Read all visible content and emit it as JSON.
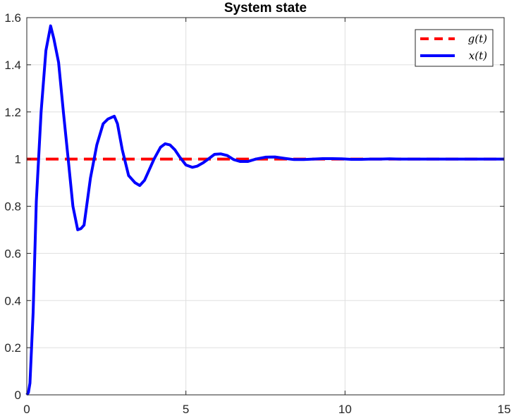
{
  "chart_data": {
    "type": "line",
    "title": "System state",
    "xlabel": "",
    "ylabel": "",
    "xlim": [
      0,
      15
    ],
    "ylim": [
      0,
      1.6
    ],
    "x_ticks": [
      "0",
      "5",
      "10",
      "15"
    ],
    "y_ticks": [
      "0",
      "0.2",
      "0.4",
      "0.6",
      "0.8",
      "1",
      "1.2",
      "1.4",
      "1.6"
    ],
    "grid": true,
    "legend_position": "top-right",
    "series": [
      {
        "name": "g(t)",
        "color": "#ff0000",
        "style": "dashed",
        "x": [
          0,
          15
        ],
        "y": [
          1,
          1
        ]
      },
      {
        "name": "x(t)",
        "color": "#0000ff",
        "style": "solid",
        "x": [
          0,
          0.05,
          0.1,
          0.2,
          0.3,
          0.45,
          0.6,
          0.75,
          0.85,
          1.0,
          1.15,
          1.3,
          1.45,
          1.6,
          1.7,
          1.8,
          2.0,
          2.2,
          2.4,
          2.55,
          2.75,
          2.85,
          3.0,
          3.2,
          3.4,
          3.55,
          3.7,
          3.8,
          4.0,
          4.2,
          4.35,
          4.5,
          4.65,
          4.8,
          5.0,
          5.2,
          5.35,
          5.55,
          5.7,
          5.9,
          6.1,
          6.3,
          6.5,
          6.7,
          6.95,
          7.2,
          7.5,
          7.8,
          8.1,
          8.4,
          8.7,
          9.0,
          9.3,
          9.6,
          9.9,
          10.2,
          10.5,
          10.8,
          11.1,
          11.4,
          11.7,
          12.0,
          12.5,
          13.0,
          13.5,
          14.0,
          14.5,
          15.0
        ],
        "y": [
          0,
          0.01,
          0.05,
          0.35,
          0.82,
          1.2,
          1.46,
          1.565,
          1.51,
          1.41,
          1.2,
          1.0,
          0.8,
          0.7,
          0.705,
          0.72,
          0.92,
          1.06,
          1.15,
          1.17,
          1.182,
          1.15,
          1.04,
          0.93,
          0.9,
          0.888,
          0.91,
          0.94,
          1.0,
          1.05,
          1.065,
          1.06,
          1.04,
          1.01,
          0.975,
          0.965,
          0.97,
          0.985,
          1.0,
          1.02,
          1.022,
          1.015,
          0.998,
          0.99,
          0.99,
          1.0,
          1.008,
          1.009,
          1.003,
          0.998,
          0.998,
          1.0,
          1.002,
          1.002,
          1.001,
          0.999,
          0.999,
          1.0,
          1.0,
          1.001,
          1.0,
          1.0,
          1.0,
          1.0,
          1.0,
          1.0,
          1.0,
          1.0
        ]
      }
    ]
  }
}
